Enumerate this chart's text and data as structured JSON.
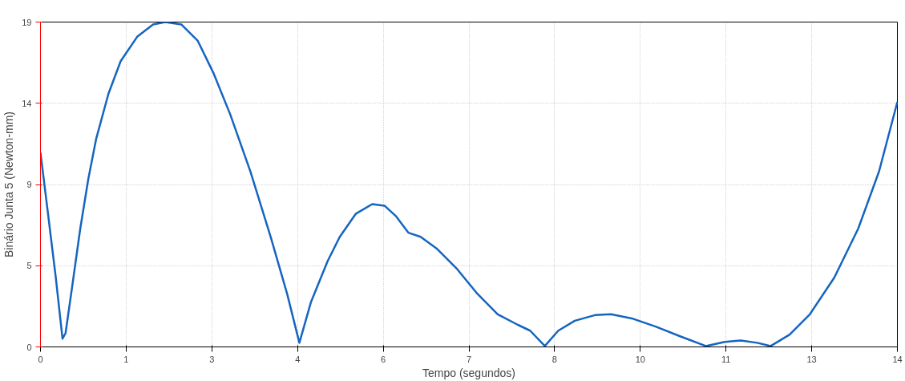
{
  "chart_data": {
    "type": "line",
    "xlabel": "Tempo (segundos)",
    "ylabel": "Binário Junta 5 (Newton-mm)",
    "x": [
      0,
      0.12,
      0.25,
      0.36,
      0.41,
      0.52,
      0.65,
      0.78,
      0.91,
      1.11,
      1.31,
      1.58,
      1.84,
      2.04,
      2.3,
      2.57,
      2.83,
      3.1,
      3.43,
      3.76,
      4.03,
      4.23,
      4.42,
      4.69,
      4.89,
      5.15,
      5.42,
      5.62,
      5.81,
      6.01,
      6.21,
      6.48,
      6.81,
      7.14,
      7.47,
      7.8,
      8.0,
      8.24,
      8.46,
      8.73,
      9.06,
      9.32,
      9.66,
      10.05,
      10.45,
      10.87,
      11.18,
      11.44,
      11.71,
      11.93,
      12.24,
      12.57,
      12.97,
      13.36,
      13.7,
      14.0
    ],
    "series": [
      {
        "color": "#1565c0",
        "values": [
          11.36,
          7.88,
          4.06,
          0.48,
          0.81,
          3.58,
          6.92,
          9.79,
          12.17,
          14.8,
          16.71,
          18.14,
          18.86,
          19.0,
          18.86,
          17.9,
          15.99,
          13.6,
          10.26,
          6.44,
          3.1,
          0.24,
          2.63,
          5.01,
          6.44,
          7.78,
          8.35,
          8.26,
          7.64,
          6.68,
          6.44,
          5.73,
          4.54,
          3.1,
          1.91,
          1.29,
          0.95,
          0.05,
          0.95,
          1.53,
          1.86,
          1.91,
          1.67,
          1.19,
          0.62,
          0.05,
          0.29,
          0.38,
          0.24,
          0.05,
          0.72,
          1.91,
          4.06,
          6.92,
          10.26,
          14.33
        ]
      }
    ],
    "xlim": [
      0,
      14
    ],
    "ylim": [
      0,
      19
    ],
    "xticks": [
      0,
      {
        "value": 1.4,
        "label": "1"
      },
      {
        "value": 2.8,
        "label": "3"
      },
      {
        "value": 4.2,
        "label": "4"
      },
      {
        "value": 5.6,
        "label": "6"
      },
      7,
      {
        "value": 8.4,
        "label": "8"
      },
      {
        "value": 9.8,
        "label": "10"
      },
      {
        "value": 11.2,
        "label": "11"
      },
      {
        "value": 12.6,
        "label": "13"
      },
      14
    ],
    "yticks": [
      0,
      {
        "value": 4.75,
        "label": "5"
      },
      {
        "value": 9.5,
        "label": "9"
      },
      {
        "value": 14.25,
        "label": "14"
      },
      19
    ],
    "grid": true,
    "line_style": "solid",
    "marker": "none"
  }
}
